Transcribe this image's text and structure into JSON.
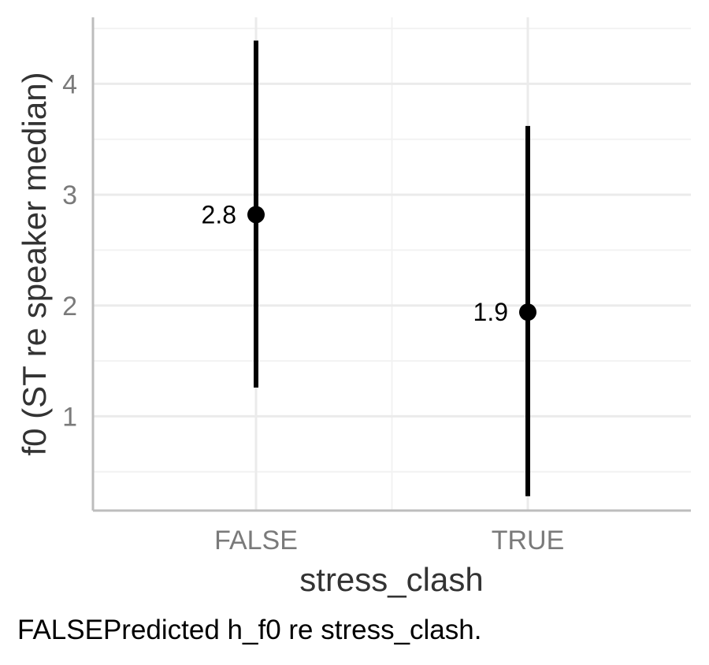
{
  "chart_data": {
    "type": "scatter",
    "categories": [
      "FALSE",
      "TRUE"
    ],
    "series": [
      {
        "values": [
          2.8,
          1.9
        ],
        "estimates": [
          2.82,
          1.94
        ],
        "lower": [
          1.26,
          0.28
        ],
        "upper": [
          4.39,
          3.62
        ],
        "labels": [
          "2.8",
          "1.9"
        ]
      }
    ],
    "xlabel": "stress_clash",
    "ylabel": "f0 (ST re speaker median)",
    "ylim": [
      0.15,
      4.6
    ],
    "yticks": [
      1,
      2,
      3,
      4
    ],
    "yticks_minor": [
      0.5,
      1.5,
      2.5,
      3.5,
      4.5
    ],
    "ytick_labels": [
      "1",
      "2",
      "3",
      "4"
    ],
    "grid": true,
    "legend": "none",
    "colors": {
      "point": "#000000",
      "errorbar": "#000000",
      "grid_major": "#ebebeb",
      "grid_minor": "#f2f2f2",
      "axis": "#bdbdbd"
    }
  },
  "caption": "FALSEPredicted h_f0 re stress_clash."
}
